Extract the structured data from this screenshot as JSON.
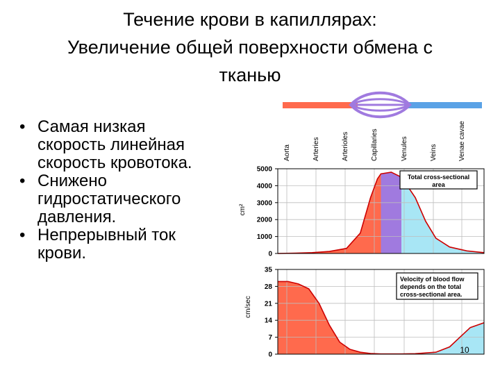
{
  "slide": {
    "title_lines": [
      "Течение крови в капиллярах:",
      "Увеличение общей поверхности обмена с",
      "тканью"
    ],
    "bullets": [
      [
        "Самая низкая",
        "скорость линейная",
        "скорость кровотока."
      ],
      [
        "Снижено",
        "гидростатического",
        "давления."
      ],
      [
        "Непрерывный ток",
        "крови."
      ]
    ],
    "page_number": "10"
  },
  "colors": {
    "arterial": "#ff6a4d",
    "capillary": "#a07adf",
    "venous": "#a8e6f5",
    "vessel_blue": "#5aa2e6",
    "curve": "#cc0000"
  },
  "chart_data": [
    {
      "type": "area",
      "categories": [
        "Aorta",
        "Arteries",
        "Arterioles",
        "Capillaries",
        "Venules",
        "Veins",
        "Venae cavae"
      ],
      "ylabel": "cm²",
      "ylim": [
        0,
        5000
      ],
      "yticks": [
        0,
        1000,
        2000,
        3000,
        4000,
        5000
      ],
      "ytick_labels": [
        "0",
        "1000",
        "2000",
        "3000",
        "4000",
        "5000"
      ],
      "annotation_lines": [
        "Total cross-sectional",
        "area"
      ],
      "x": [
        0,
        0.5,
        1,
        1.5,
        2,
        2.4,
        2.7,
        2.9,
        3,
        3.3,
        3.6,
        4,
        4.3,
        4.6,
        5,
        5.5,
        6
      ],
      "values": [
        0,
        20,
        50,
        120,
        300,
        1200,
        3300,
        4400,
        4700,
        4800,
        4500,
        3300,
        1900,
        900,
        380,
        150,
        50
      ],
      "regions": [
        {
          "from": 0,
          "to": 3,
          "color": "arterial"
        },
        {
          "from": 3,
          "to": 3.6,
          "color": "capillary"
        },
        {
          "from": 3.6,
          "to": 6,
          "color": "venous"
        }
      ],
      "grid": true
    },
    {
      "type": "area",
      "ylabel": "cm/sec",
      "ylim": [
        0,
        35
      ],
      "yticks": [
        0,
        7,
        14,
        21,
        28,
        35
      ],
      "ytick_labels": [
        "0",
        "7",
        "14",
        "21",
        "28",
        "35"
      ],
      "annotation_lines": [
        "Velocity of blood flow",
        "depends on the total",
        "cross-sectional area."
      ],
      "x": [
        0,
        0.3,
        0.6,
        0.9,
        1.2,
        1.5,
        1.8,
        2.1,
        2.4,
        2.7,
        3,
        3.6,
        4,
        4.6,
        5,
        5.3,
        5.6,
        6
      ],
      "values": [
        30,
        30,
        29,
        27,
        21,
        12,
        5,
        2,
        0.8,
        0.3,
        0.1,
        0.1,
        0.2,
        0.8,
        3,
        7,
        11,
        13
      ],
      "regions": [
        {
          "from": 0,
          "to": 3,
          "color": "arterial"
        },
        {
          "from": 3,
          "to": 3.6,
          "color": "capillary"
        },
        {
          "from": 3.6,
          "to": 6,
          "color": "venous"
        }
      ],
      "grid": true
    }
  ]
}
